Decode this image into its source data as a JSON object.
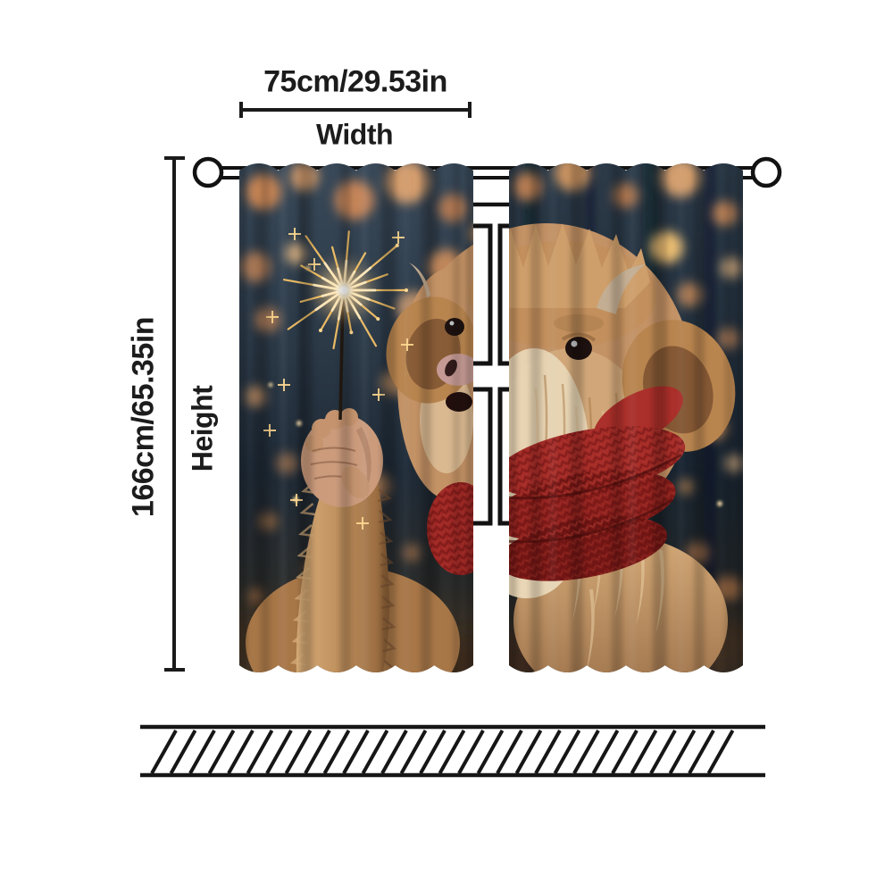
{
  "diagram": {
    "width_dimension": {
      "value": "75cm/29.53in",
      "caption": "Width"
    },
    "height_dimension": {
      "value": "166cm/65.35in",
      "caption": "Height"
    }
  },
  "colors": {
    "annotation_ink": "#1c1c1c",
    "scarf_red": "#9c2623",
    "cow_fur_tan": "#c39265",
    "cow_fur_cream": "#e9d6b6",
    "bokeh_orange": "#f0a968",
    "night_background": "#243140",
    "sparkler_gold": "#ffd98f"
  },
  "icons": {
    "rod_finial": "circle-outline",
    "wall_hatch": "diagonal-line-fill"
  }
}
